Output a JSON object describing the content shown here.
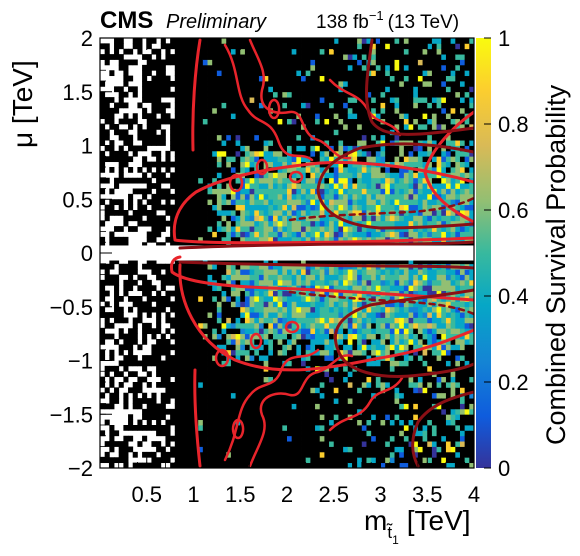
{
  "header": {
    "experiment": "CMS",
    "status": "Preliminary",
    "lumi_value": "138 fb",
    "lumi_exponent": "−1",
    "energy": "(13 TeV)"
  },
  "chart_data": {
    "type": "heatmap",
    "xlabel_main": "m",
    "xlabel_sub": "t̃",
    "xlabel_subsub": "1",
    "xlabel_unit": "[TeV]",
    "ylabel": "μ [TeV]",
    "colorbar_label": "Combined Survival Probability",
    "xlim": [
      0,
      4
    ],
    "ylim": [
      -2,
      2
    ],
    "zlim": [
      0,
      1
    ],
    "xticks": [
      0.5,
      1,
      1.5,
      2,
      2.5,
      3,
      3.5,
      4
    ],
    "xtick_labels": [
      "0.5",
      "1",
      "1.5",
      "2",
      "2.5",
      "3",
      "3.5",
      "4"
    ],
    "yticks": [
      -2,
      -1.5,
      -1,
      -0.5,
      0,
      0.5,
      1,
      1.5,
      2
    ],
    "ytick_labels": [
      "−2",
      "−1.5",
      "−1",
      "−0.5",
      "0",
      "0.5",
      "1",
      "1.5",
      "2"
    ],
    "zticks": [
      0,
      0.2,
      0.4,
      0.6,
      0.8,
      1
    ],
    "ztick_labels": [
      "0",
      "0.2",
      "0.4",
      "0.6",
      "0.8",
      "1"
    ],
    "colormap": [
      "#35339a",
      "#0f5cdd",
      "#1485d4",
      "#06a7c6",
      "#38b99e",
      "#92bf73",
      "#d9ba56",
      "#fcce2e",
      "#f9fb0e"
    ],
    "contour_colors": {
      "bright": "#e8242b",
      "dark": "#8b0f15"
    },
    "excluded_color": "#000000",
    "notes_hidden": []
  }
}
